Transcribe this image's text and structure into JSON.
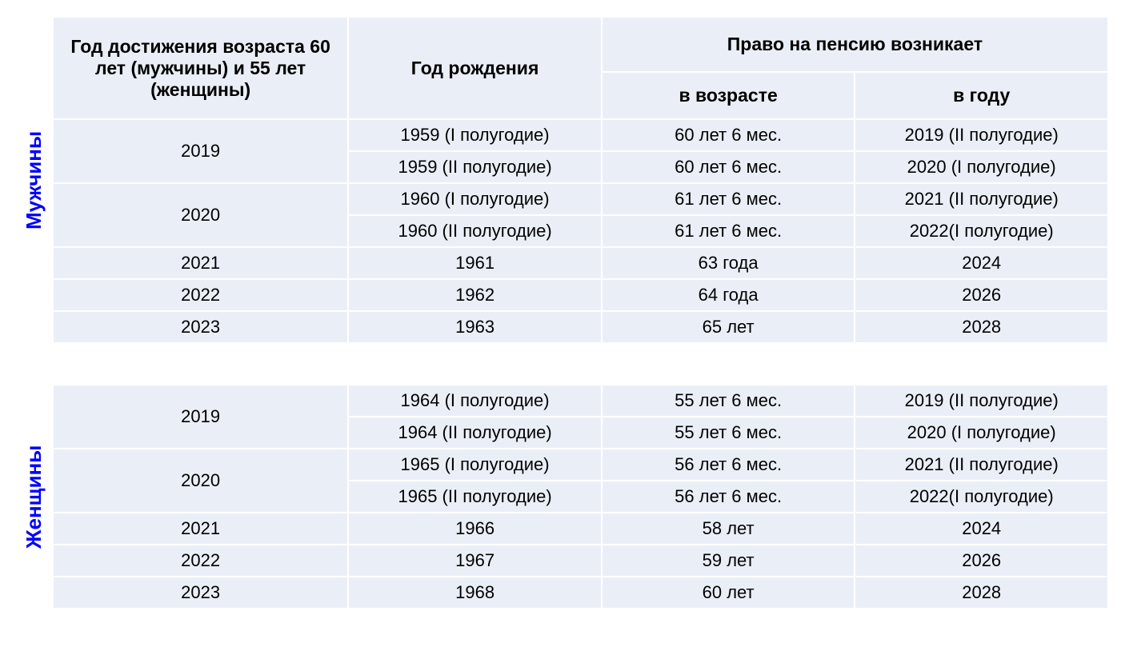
{
  "headers": {
    "col1": "Год достижения возраста 60 лет  (мужчины) и 55 лет (женщины)",
    "col2": "Год рождения",
    "col3_main": "Право на пенсию возникает",
    "col3_sub1": "в возрасте",
    "col3_sub2": "в году"
  },
  "labels": {
    "men": "Мужчины",
    "women": "Женщины"
  },
  "men_rows": [
    {
      "year": "2019",
      "birth": "1959 (I полугодие)",
      "age": "60 лет 6 мес.",
      "pension_year": "2019 (II полугодие)",
      "span": 2
    },
    {
      "year": "",
      "birth": "1959  (II полугодие)",
      "age": "60 лет 6 мес.",
      "pension_year": "2020 (I полугодие)",
      "span": 0
    },
    {
      "year": "2020",
      "birth": "1960 (I полугодие)",
      "age": "61 лет 6 мес.",
      "pension_year": "2021 (II полугодие)",
      "span": 2
    },
    {
      "year": "",
      "birth": "1960 (II полугодие)",
      "age": "61 лет 6 мес.",
      "pension_year": "2022(I полугодие)",
      "span": 0
    },
    {
      "year": "2021",
      "birth": "1961",
      "age": "63 года",
      "pension_year": "2024",
      "span": 1
    },
    {
      "year": "2022",
      "birth": "1962",
      "age": "64 года",
      "pension_year": "2026",
      "span": 1
    },
    {
      "year": "2023",
      "birth": "1963",
      "age": "65 лет",
      "pension_year": "2028",
      "span": 1
    }
  ],
  "women_rows": [
    {
      "year": "2019",
      "birth": "1964 (I полугодие)",
      "age": "55 лет 6 мес.",
      "pension_year": "2019 (II полугодие)",
      "span": 2
    },
    {
      "year": "",
      "birth": "1964  (II полугодие)",
      "age": "55 лет 6 мес.",
      "pension_year": "2020 (I полугодие)",
      "span": 0
    },
    {
      "year": "2020",
      "birth": "1965 (I полугодие)",
      "age": "56 лет 6 мес.",
      "pension_year": "2021 (II полугодие)",
      "span": 2
    },
    {
      "year": "",
      "birth": "1965 (II полугодие)",
      "age": "56 лет 6 мес.",
      "pension_year": "2022(I полугодие)",
      "span": 0
    },
    {
      "year": "2021",
      "birth": "1966",
      "age": "58 лет",
      "pension_year": "2024",
      "span": 1
    },
    {
      "year": "2022",
      "birth": "1967",
      "age": "59 лет",
      "pension_year": "2026",
      "span": 1
    },
    {
      "year": "2023",
      "birth": "1968",
      "age": "60 лет",
      "pension_year": "2028",
      "span": 1
    }
  ],
  "styling": {
    "cell_bg": "#eaeff7",
    "border_color": "#ffffff",
    "label_color": "#0000ff",
    "text_color": "#000000",
    "header_fontsize": 23,
    "cell_fontsize": 22,
    "label_fontsize": 26
  }
}
